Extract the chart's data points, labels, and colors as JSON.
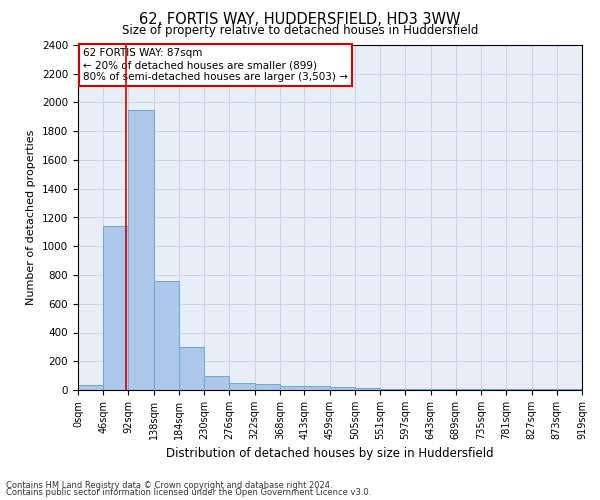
{
  "title": "62, FORTIS WAY, HUDDERSFIELD, HD3 3WW",
  "subtitle": "Size of property relative to detached houses in Huddersfield",
  "xlabel": "Distribution of detached houses by size in Huddersfield",
  "ylabel": "Number of detached properties",
  "bin_edges": [
    0,
    46,
    92,
    138,
    184,
    230,
    276,
    322,
    368,
    413,
    459,
    505,
    551,
    597,
    643,
    689,
    735,
    781,
    827,
    873,
    919
  ],
  "bar_heights": [
    35,
    1140,
    1950,
    760,
    300,
    100,
    50,
    40,
    30,
    25,
    20,
    15,
    10,
    8,
    5,
    5,
    5,
    5,
    5,
    5
  ],
  "bar_color": "#aec6e8",
  "bar_edge_color": "#6aaad4",
  "property_size": 87,
  "annotation_text": "62 FORTIS WAY: 87sqm\n← 20% of detached houses are smaller (899)\n80% of semi-detached houses are larger (3,503) →",
  "annotation_box_color": "#ffffff",
  "annotation_box_edge": "#cc0000",
  "red_line_color": "#cc0000",
  "grid_color": "#c8d4e8",
  "background_color": "#e8eef8",
  "ylim": [
    0,
    2400
  ],
  "yticks": [
    0,
    200,
    400,
    600,
    800,
    1000,
    1200,
    1400,
    1600,
    1800,
    2000,
    2200,
    2400
  ],
  "footnote1": "Contains HM Land Registry data © Crown copyright and database right 2024.",
  "footnote2": "Contains public sector information licensed under the Open Government Licence v3.0."
}
